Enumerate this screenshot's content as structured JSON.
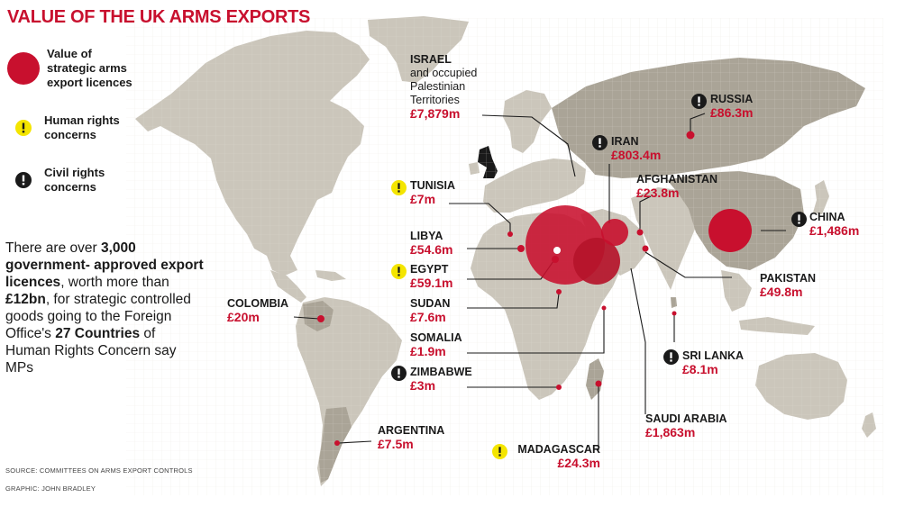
{
  "title": "VALUE OF THE UK ARMS EXPORTS",
  "legend": {
    "value_label": "Value of strategic arms export licences",
    "human_rights_label": "Human rights concerns",
    "civil_rights_label": "Civil rights concerns"
  },
  "blurb": {
    "p1": "There are over ",
    "b1": "3,000 government- approved export licences",
    "p2": ", worth more than ",
    "b2": "£12bn",
    "p3": ", for strategic controlled goods going to the Foreign Office's ",
    "b3": "27 Countries",
    "p4": " of Human Rights Concern say MPs"
  },
  "source": "SOURCE: COMMITTEES ON ARMS EXPORT CONTROLS",
  "graphic": "GRAPHIC: JOHN BRADLEY",
  "colors": {
    "accent": "#c8102e",
    "land": "#cbc6bb",
    "highlight_land": "#aaa497",
    "human_rights_marker": "#f4e500",
    "civil_rights_marker": "#1a1a1a"
  },
  "countries": [
    {
      "id": "israel",
      "name": "ISRAEL",
      "sub1": "and occupied",
      "sub2": "Palestinian",
      "sub3": "Territories",
      "value": "£7,879m",
      "value_m": 7879,
      "concern": "none"
    },
    {
      "id": "russia",
      "name": "RUSSIA",
      "value": "£86.3m",
      "value_m": 86.3,
      "concern": "civil"
    },
    {
      "id": "iran",
      "name": "IRAN",
      "value": "£803.4m",
      "value_m": 803.4,
      "concern": "civil"
    },
    {
      "id": "afghanistan",
      "name": "AFGHANISTAN",
      "value": "£23.8m",
      "value_m": 23.8,
      "concern": "none"
    },
    {
      "id": "china",
      "name": "CHINA",
      "value": "£1,486m",
      "value_m": 1486,
      "concern": "civil"
    },
    {
      "id": "tunisia",
      "name": "TUNISIA",
      "value": "£7m",
      "value_m": 7,
      "concern": "human"
    },
    {
      "id": "libya",
      "name": "LIBYA",
      "value": "£54.6m",
      "value_m": 54.6,
      "concern": "none"
    },
    {
      "id": "egypt",
      "name": "EGYPT",
      "value": "£59.1m",
      "value_m": 59.1,
      "concern": "human"
    },
    {
      "id": "sudan",
      "name": "SUDAN",
      "value": "£7.6m",
      "value_m": 7.6,
      "concern": "none"
    },
    {
      "id": "pakistan",
      "name": "PAKISTAN",
      "value": "£49.8m",
      "value_m": 49.8,
      "concern": "none"
    },
    {
      "id": "colombia",
      "name": "COLOMBIA",
      "value": "£20m",
      "value_m": 20,
      "concern": "none"
    },
    {
      "id": "somalia",
      "name": "SOMALIA",
      "value": "£1.9m",
      "value_m": 1.9,
      "concern": "none"
    },
    {
      "id": "zimbabwe",
      "name": "ZIMBABWE",
      "value": "£3m",
      "value_m": 3,
      "concern": "civil"
    },
    {
      "id": "sri_lanka",
      "name": "SRI LANKA",
      "value": "£8.1m",
      "value_m": 8.1,
      "concern": "civil"
    },
    {
      "id": "saudi_arabia",
      "name": "SAUDI ARABIA",
      "value": "£1,863m",
      "value_m": 1863,
      "concern": "none"
    },
    {
      "id": "argentina",
      "name": "ARGENTINA",
      "value": "£7.5m",
      "value_m": 7.5,
      "concern": "none"
    },
    {
      "id": "madagascar",
      "name": "MADAGASCAR",
      "value": "£24.3m",
      "value_m": 24.3,
      "concern": "human"
    }
  ]
}
